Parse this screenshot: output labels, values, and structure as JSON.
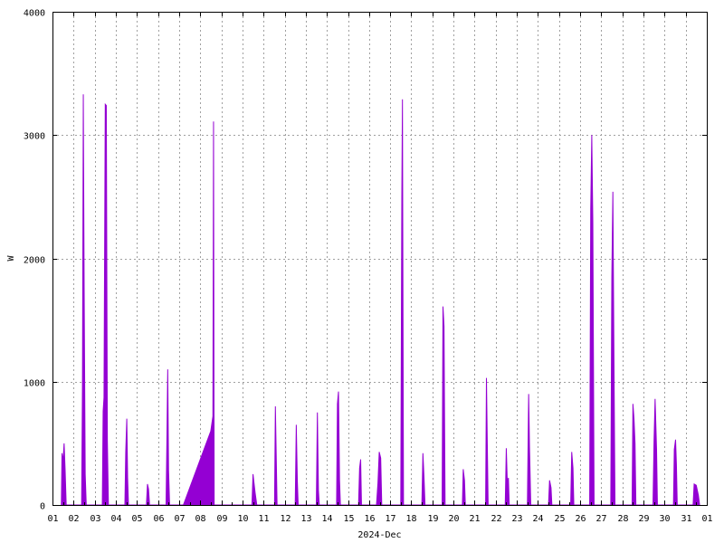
{
  "chart_data": {
    "type": "area",
    "title": "",
    "xlabel": "2024-Dec",
    "ylabel": "W",
    "xlim": [
      1,
      32
    ],
    "ylim": [
      0,
      4000
    ],
    "grid": true,
    "series_color": "#9400d3",
    "x_tick_labels": [
      "01",
      "02",
      "03",
      "04",
      "05",
      "06",
      "07",
      "08",
      "09",
      "10",
      "11",
      "12",
      "13",
      "14",
      "15",
      "16",
      "17",
      "18",
      "19",
      "20",
      "21",
      "22",
      "23",
      "24",
      "25",
      "26",
      "27",
      "28",
      "29",
      "30",
      "31",
      "01"
    ],
    "y_tick_labels": [
      "0",
      "1000",
      "2000",
      "3000",
      "4000"
    ],
    "y_ticks": [
      0,
      1000,
      2000,
      3000,
      4000
    ],
    "series": [
      {
        "points": [
          [
            1.42,
            0
          ],
          [
            1.45,
            420
          ],
          [
            1.5,
            350
          ],
          [
            1.55,
            500
          ],
          [
            1.6,
            280
          ],
          [
            1.65,
            0
          ],
          [
            2.38,
            0
          ],
          [
            2.42,
            980
          ],
          [
            2.46,
            3330
          ],
          [
            2.5,
            1770
          ],
          [
            2.55,
            250
          ],
          [
            2.6,
            0
          ],
          [
            3.36,
            0
          ],
          [
            3.4,
            760
          ],
          [
            3.44,
            870
          ],
          [
            3.5,
            3250
          ],
          [
            3.55,
            3240
          ],
          [
            3.6,
            520
          ],
          [
            3.65,
            0
          ],
          [
            4.43,
            0
          ],
          [
            4.47,
            430
          ],
          [
            4.52,
            700
          ],
          [
            4.56,
            220
          ],
          [
            4.6,
            0
          ],
          [
            5.45,
            0
          ],
          [
            5.5,
            170
          ],
          [
            5.55,
            130
          ],
          [
            5.6,
            0
          ],
          [
            6.38,
            0
          ],
          [
            6.42,
            520
          ],
          [
            6.46,
            1100
          ],
          [
            6.5,
            280
          ],
          [
            6.55,
            0
          ],
          [
            7.2,
            0
          ],
          [
            8.5,
            600
          ],
          [
            8.6,
            720
          ],
          [
            8.63,
            3110
          ],
          [
            8.66,
            0
          ],
          [
            10.45,
            0
          ],
          [
            10.5,
            250
          ],
          [
            10.6,
            100
          ],
          [
            10.68,
            0
          ],
          [
            11.52,
            0
          ],
          [
            11.56,
            800
          ],
          [
            11.6,
            400
          ],
          [
            11.64,
            0
          ],
          [
            12.5,
            0
          ],
          [
            12.55,
            650
          ],
          [
            12.6,
            200
          ],
          [
            12.64,
            0
          ],
          [
            13.5,
            0
          ],
          [
            13.55,
            750
          ],
          [
            13.6,
            120
          ],
          [
            13.64,
            0
          ],
          [
            14.46,
            0
          ],
          [
            14.5,
            820
          ],
          [
            14.55,
            920
          ],
          [
            14.6,
            200
          ],
          [
            14.64,
            0
          ],
          [
            15.5,
            0
          ],
          [
            15.55,
            300
          ],
          [
            15.6,
            370
          ],
          [
            15.64,
            0
          ],
          [
            16.35,
            0
          ],
          [
            16.42,
            180
          ],
          [
            16.48,
            430
          ],
          [
            16.55,
            380
          ],
          [
            16.6,
            0
          ],
          [
            17.5,
            0
          ],
          [
            17.55,
            2480
          ],
          [
            17.58,
            3290
          ],
          [
            17.63,
            0
          ],
          [
            18.5,
            0
          ],
          [
            18.55,
            420
          ],
          [
            18.6,
            230
          ],
          [
            18.65,
            0
          ],
          [
            19.46,
            0
          ],
          [
            19.5,
            1610
          ],
          [
            19.55,
            1450
          ],
          [
            19.6,
            0
          ],
          [
            20.42,
            0
          ],
          [
            20.46,
            290
          ],
          [
            20.52,
            200
          ],
          [
            20.56,
            0
          ],
          [
            21.52,
            0
          ],
          [
            21.56,
            1030
          ],
          [
            21.6,
            500
          ],
          [
            21.64,
            0
          ],
          [
            22.45,
            0
          ],
          [
            22.5,
            460
          ],
          [
            22.55,
            170
          ],
          [
            22.6,
            220
          ],
          [
            22.64,
            0
          ],
          [
            23.5,
            0
          ],
          [
            23.56,
            900
          ],
          [
            23.6,
            470
          ],
          [
            23.66,
            0
          ],
          [
            24.5,
            0
          ],
          [
            24.55,
            200
          ],
          [
            24.62,
            140
          ],
          [
            24.66,
            0
          ],
          [
            25.55,
            0
          ],
          [
            25.6,
            430
          ],
          [
            25.66,
            300
          ],
          [
            25.7,
            0
          ],
          [
            26.45,
            0
          ],
          [
            26.5,
            2400
          ],
          [
            26.55,
            3000
          ],
          [
            26.6,
            2300
          ],
          [
            26.66,
            0
          ],
          [
            27.45,
            0
          ],
          [
            27.5,
            1850
          ],
          [
            27.55,
            2540
          ],
          [
            27.6,
            1200
          ],
          [
            27.65,
            0
          ],
          [
            28.46,
            0
          ],
          [
            28.5,
            820
          ],
          [
            28.55,
            700
          ],
          [
            28.6,
            500
          ],
          [
            28.64,
            0
          ],
          [
            29.45,
            0
          ],
          [
            29.5,
            520
          ],
          [
            29.55,
            860
          ],
          [
            29.62,
            450
          ],
          [
            29.66,
            0
          ],
          [
            30.42,
            0
          ],
          [
            30.46,
            450
          ],
          [
            30.52,
            530
          ],
          [
            30.56,
            330
          ],
          [
            30.6,
            0
          ],
          [
            31.35,
            0
          ],
          [
            31.4,
            170
          ],
          [
            31.5,
            160
          ],
          [
            31.6,
            80
          ],
          [
            31.66,
            0
          ]
        ]
      }
    ]
  }
}
